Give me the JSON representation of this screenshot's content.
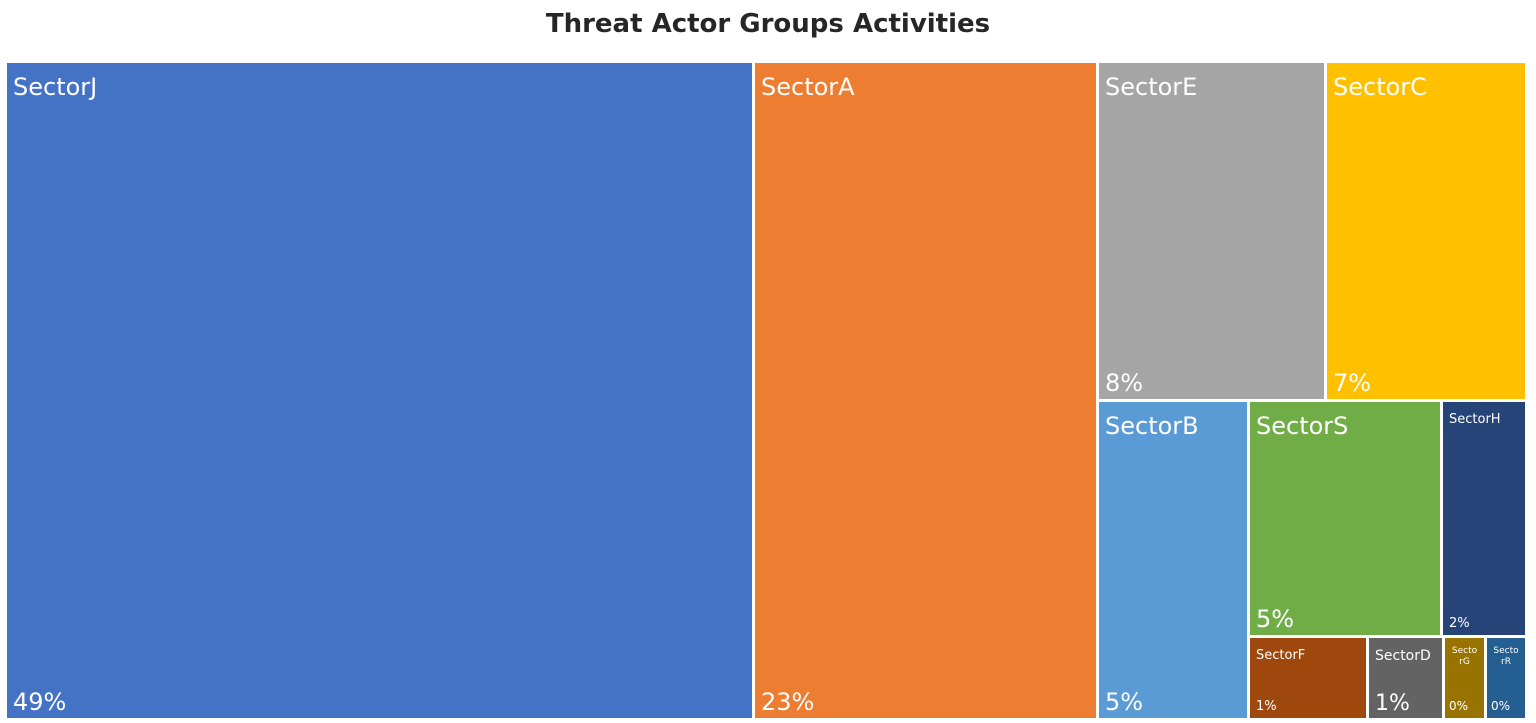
{
  "chart_data": {
    "type": "treemap",
    "title": "Threat Actor Groups Activities",
    "items": [
      {
        "name": "SectorJ",
        "label": "49%",
        "value": 49,
        "color": "#4472C4"
      },
      {
        "name": "SectorA",
        "label": "23%",
        "value": 23,
        "color": "#ED7D31"
      },
      {
        "name": "SectorE",
        "label": "8%",
        "value": 8,
        "color": "#A5A5A5"
      },
      {
        "name": "SectorC",
        "label": "7%",
        "value": 7,
        "color": "#FFC000"
      },
      {
        "name": "SectorB",
        "label": "5%",
        "value": 5,
        "color": "#5B9BD5"
      },
      {
        "name": "SectorS",
        "label": "5%",
        "value": 5,
        "color": "#70AD47"
      },
      {
        "name": "SectorH",
        "label": "2%",
        "value": 2,
        "color": "#264478"
      },
      {
        "name": "SectorF",
        "label": "1%",
        "value": 1,
        "color": "#9E480E"
      },
      {
        "name": "SectorD",
        "label": "1%",
        "value": 1,
        "color": "#636363"
      },
      {
        "name": "SectorG",
        "label": "0%",
        "value": 0,
        "color": "#997300"
      },
      {
        "name": "SectorR",
        "label": "0%",
        "value": 0,
        "color": "#255E91"
      }
    ]
  }
}
